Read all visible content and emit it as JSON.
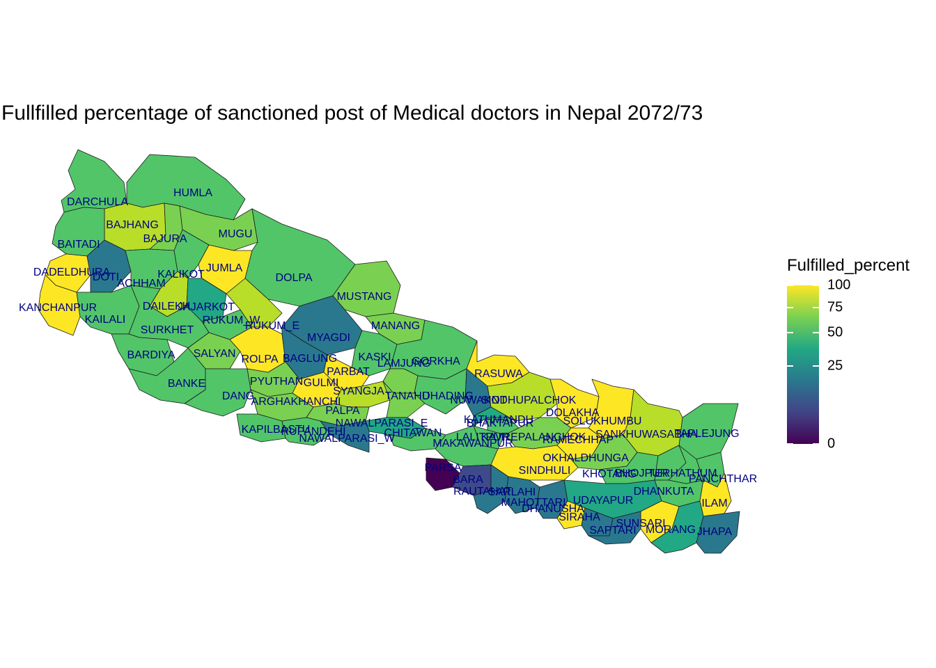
{
  "title": "Fullfilled percentage of sanctioned post of Medical doctors in Nepal 2072/73",
  "legend": {
    "title": "Fulfilled_percent",
    "ticks": [
      "100",
      "75",
      "50",
      "25",
      "0"
    ],
    "tick_values": [
      100,
      75,
      50,
      25,
      0
    ],
    "colors": [
      "#fde725",
      "#7ad151",
      "#22a884",
      "#2a788e",
      "#414487",
      "#440154"
    ]
  },
  "colors": {
    "very_high": "#fde725",
    "high": "#b8de29",
    "mid_high": "#7ad151",
    "mid": "#52c569",
    "mid_low": "#22a884",
    "low": "#2a788e",
    "very_low": "#3e4a89",
    "zero": "#440154",
    "border": "#1a1a1a",
    "label": "#000080"
  },
  "districts": [
    {
      "name": "DARCHULA",
      "value": 60
    },
    {
      "name": "HUMLA",
      "value": 55
    },
    {
      "name": "BAJHANG",
      "value": 75
    },
    {
      "name": "BAITADI",
      "value": 60
    },
    {
      "name": "BAJURA",
      "value": 65
    },
    {
      "name": "MUGU",
      "value": 70
    },
    {
      "name": "DADELDHURA",
      "value": 95
    },
    {
      "name": "DOTI",
      "value": 30
    },
    {
      "name": "ACHHAM",
      "value": 50
    },
    {
      "name": "KALIKOT",
      "value": 55
    },
    {
      "name": "JUMLA",
      "value": 100
    },
    {
      "name": "DOLPA",
      "value": 55
    },
    {
      "name": "KANCHANPUR",
      "value": 100
    },
    {
      "name": "KAILALI",
      "value": 55
    },
    {
      "name": "DAILEKH",
      "value": 80
    },
    {
      "name": "JAJARKOT",
      "value": 45
    },
    {
      "name": "MUSTANG",
      "value": 70
    },
    {
      "name": "RUKUM_W",
      "value": 60
    },
    {
      "name": "RUKUM_E",
      "value": 75
    },
    {
      "name": "SURKHET",
      "value": 55
    },
    {
      "name": "MANANG",
      "value": 70
    },
    {
      "name": "MYAGDI",
      "value": 30
    },
    {
      "name": "BARDIYA",
      "value": 60
    },
    {
      "name": "SALYAN",
      "value": 65
    },
    {
      "name": "ROLPA",
      "value": 100
    },
    {
      "name": "BAGLUNG",
      "value": 35
    },
    {
      "name": "KASKI",
      "value": 55
    },
    {
      "name": "GORKHA",
      "value": 55
    },
    {
      "name": "LAMJUNG",
      "value": 65
    },
    {
      "name": "PARBAT",
      "value": 100
    },
    {
      "name": "RASUWA",
      "value": 100
    },
    {
      "name": "BANKE",
      "value": 60
    },
    {
      "name": "PYUTHAN",
      "value": 65
    },
    {
      "name": "GULMI",
      "value": 100
    },
    {
      "name": "SYANGJA",
      "value": 75
    },
    {
      "name": "DANG",
      "value": 55
    },
    {
      "name": "TANAHU",
      "value": 65
    },
    {
      "name": "DHADING",
      "value": 60
    },
    {
      "name": "NUWAKOT",
      "value": 30
    },
    {
      "name": "SINDHUPALCHOK",
      "value": 80
    },
    {
      "name": "ARGHAKHANCHI",
      "value": 65
    },
    {
      "name": "PALPA",
      "value": 70
    },
    {
      "name": "DOLAKHA",
      "value": 100
    },
    {
      "name": "BHAKTAPUR",
      "value": 55
    },
    {
      "name": "KATHMANDU",
      "value": 45
    },
    {
      "name": "SOLUKHUMBU",
      "value": 100
    },
    {
      "name": "NAWALPARASI_E",
      "value": 40
    },
    {
      "name": "TAPLEJUNG",
      "value": 50
    },
    {
      "name": "KAPILBASTU",
      "value": 60
    },
    {
      "name": "RUPANDEHI",
      "value": 55
    },
    {
      "name": "CHITAWAN",
      "value": 50
    },
    {
      "name": "SANKHUWASABHA",
      "value": 75
    },
    {
      "name": "LALITPUR",
      "value": 60
    },
    {
      "name": "KAVREPALANCHOK",
      "value": 70
    },
    {
      "name": "RAMECHHAP",
      "value": 100
    },
    {
      "name": "NAWALPARASI_W",
      "value": 30
    },
    {
      "name": "MAKAWANPUR",
      "value": 55
    },
    {
      "name": "OKHALDHUNGA",
      "value": 70
    },
    {
      "name": "PARSA",
      "value": 0
    },
    {
      "name": "SINDHULI",
      "value": 100
    },
    {
      "name": "KHOTANG",
      "value": 60
    },
    {
      "name": "BHOJPUR",
      "value": 55
    },
    {
      "name": "TERHATHUM",
      "value": 60
    },
    {
      "name": "PANCHTHAR",
      "value": 55
    },
    {
      "name": "BARA",
      "value": 20
    },
    {
      "name": "RAUTAHAT",
      "value": 25
    },
    {
      "name": "SARLAHI",
      "value": 25
    },
    {
      "name": "DHANKUTA",
      "value": 50
    },
    {
      "name": "ILAM",
      "value": 100
    },
    {
      "name": "MAHOTTARI",
      "value": 30
    },
    {
      "name": "UDAYAPUR",
      "value": 45
    },
    {
      "name": "DHANUSHA",
      "value": 100
    },
    {
      "name": "SIRAHA",
      "value": 30
    },
    {
      "name": "SUNSARI",
      "value": 100
    },
    {
      "name": "SAPTARI",
      "value": 30
    },
    {
      "name": "MORANG",
      "value": 40
    },
    {
      "name": "JHAPA",
      "value": 30
    }
  ]
}
